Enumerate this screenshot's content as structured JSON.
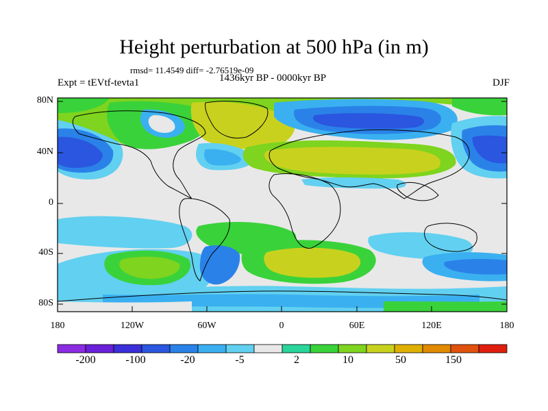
{
  "header": {
    "title": "Height perturbation at 500 hPa (in m)",
    "stats": "rmsd= 11.4549 diff= -2.76519e-09",
    "period": "1436kyr BP - 0000kyr BP",
    "experiment": "Expt = tEVtf-tevta1",
    "season": "DJF"
  },
  "map": {
    "lat_ticks": [
      "80N",
      "40N",
      "0",
      "40S",
      "80S"
    ],
    "lon_ticks": [
      "180",
      "120W",
      "60W",
      "0",
      "60E",
      "120E",
      "180"
    ]
  },
  "colorbar": {
    "labels": [
      "-200",
      "-100",
      "-20",
      "-5",
      "2",
      "10",
      "50",
      "150"
    ],
    "colors": [
      "#8b2be2",
      "#6a1fd8",
      "#3a2fd8",
      "#2a56e0",
      "#2a82e8",
      "#3ab0f0",
      "#62d0f0",
      "#e8e8e8",
      "#2ad49a",
      "#3ad23a",
      "#7ed41e",
      "#c8d21e",
      "#e0b000",
      "#e08a00",
      "#e0520e",
      "#e01e0e"
    ]
  }
}
